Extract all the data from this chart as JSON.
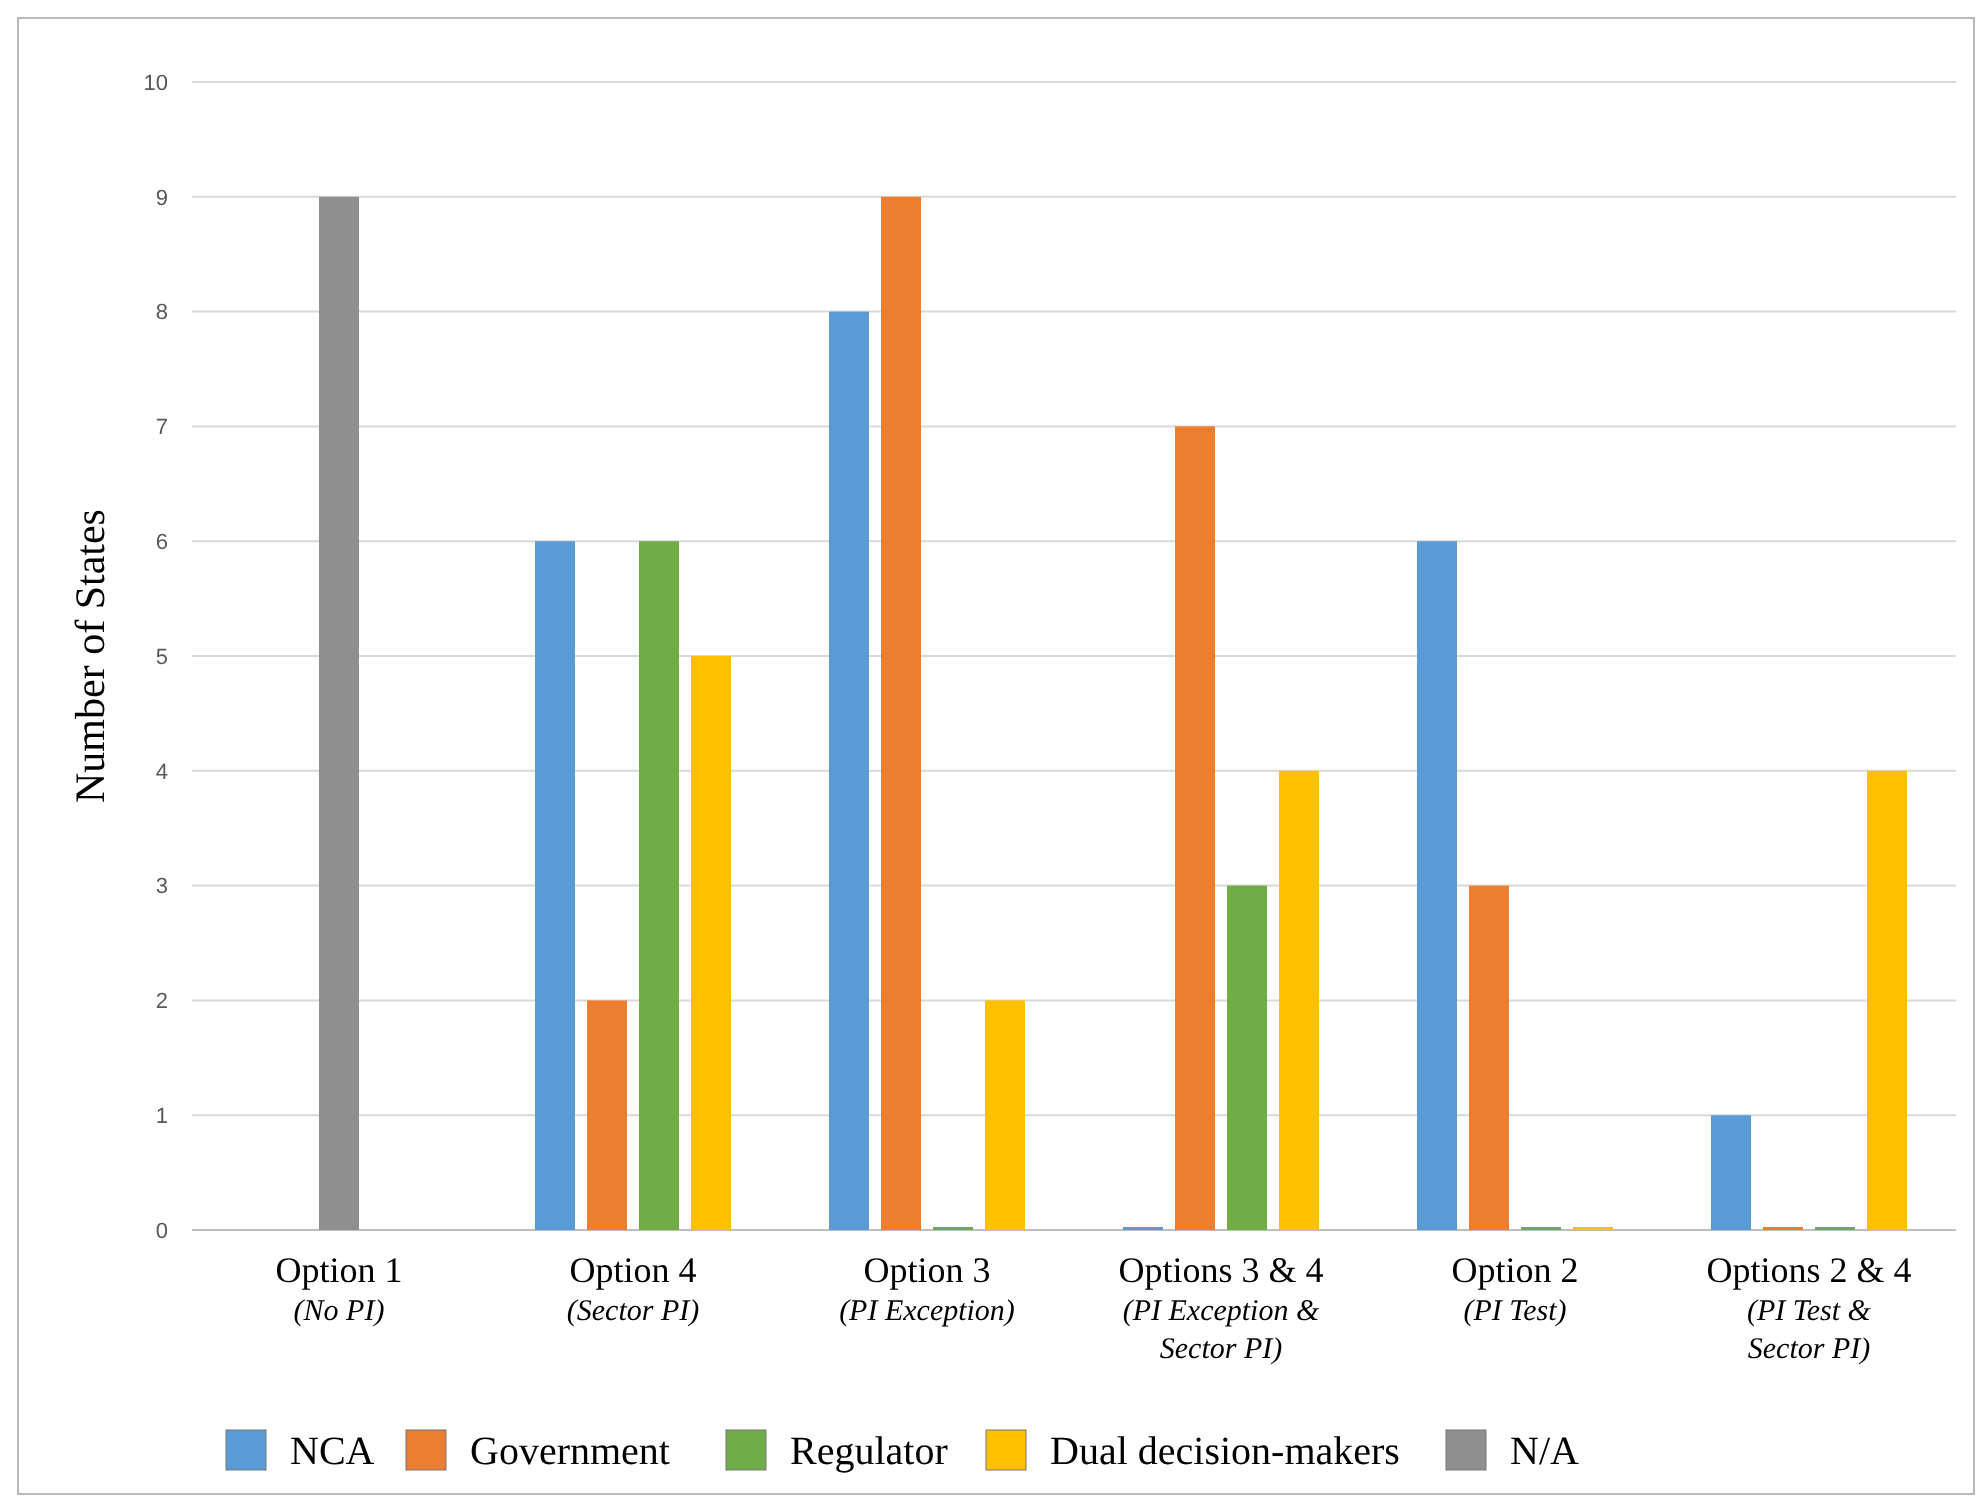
{
  "chart_data": {
    "type": "bar",
    "ylabel": "Number of States",
    "categories": [
      "Option 1\n(No PI)",
      "Option 4\n(Sector PI)",
      "Option 3\n(PI Exception)",
      "Options 3 & 4\n(PI Exception &\nSector PI)",
      "Option 2\n(PI Test)",
      "Options 2 & 4\n(PI Test &\nSector PI)"
    ],
    "series": [
      {
        "name": "NCA",
        "color": "#5b9bd5",
        "values": [
          null,
          6,
          8,
          0,
          6,
          1
        ]
      },
      {
        "name": "Government",
        "color": "#ed7d31",
        "values": [
          null,
          2,
          9,
          7,
          3,
          0
        ]
      },
      {
        "name": "Regulator",
        "color": "#70ad47",
        "values": [
          null,
          6,
          0,
          3,
          0,
          0
        ]
      },
      {
        "name": "Dual decision-makers",
        "color": "#ffc000",
        "values": [
          null,
          5,
          2,
          4,
          0,
          4
        ]
      },
      {
        "name": "N/A",
        "color": "#8f8f8f",
        "values": [
          9,
          null,
          null,
          null,
          null,
          null
        ]
      }
    ],
    "ylim": [
      0,
      10
    ],
    "yticks": [
      0,
      1,
      2,
      3,
      4,
      5,
      6,
      7,
      8,
      9,
      10
    ],
    "grid": "y",
    "legend": "bottom"
  }
}
